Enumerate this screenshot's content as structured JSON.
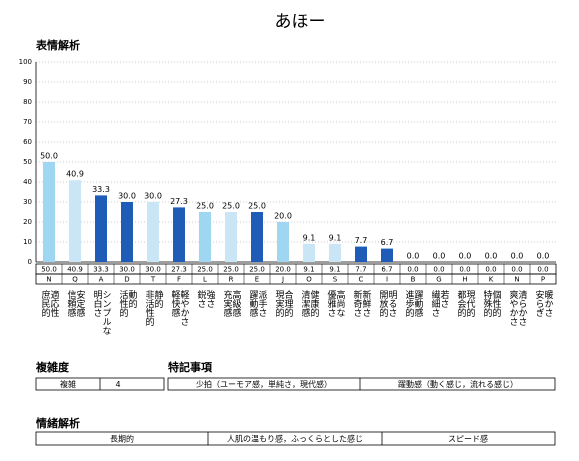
{
  "chart_data": {
    "type": "bar",
    "title": "あほー",
    "section": "表情解析",
    "categories": [
      "N",
      "Q",
      "A",
      "D",
      "T",
      "F",
      "L",
      "R",
      "E",
      "J",
      "O",
      "S",
      "C",
      "I",
      "B",
      "G",
      "H",
      "K",
      "N",
      "P"
    ],
    "descriptions": [
      [
        "庶民的",
        "適応性"
      ],
      [
        "信頼感",
        "安定感"
      ],
      [
        "明白さ",
        "シンプルな"
      ],
      [
        "活性的",
        "動的"
      ],
      [
        "非活性的",
        "静的"
      ],
      [
        "軽快感",
        "軽やかさ"
      ],
      [
        "鋭さ",
        "強さ"
      ],
      [
        "充実感",
        "高級感"
      ],
      [
        "躍動感",
        "派手さ"
      ],
      [
        "現実的",
        "合理的"
      ],
      [
        "清潔感",
        "健康的"
      ],
      [
        "優雅さ",
        "高尚な"
      ],
      [
        "新奇さ",
        "新鮮さ"
      ],
      [
        "開放的",
        "明るさ"
      ],
      [
        "進歩的",
        "躍動感"
      ],
      [
        "繊細さ",
        "若さ"
      ],
      [
        "都会的",
        "現代的"
      ],
      [
        "特殊的",
        "個性的"
      ],
      [
        "爽やかさ",
        "清らかさ"
      ],
      [
        "安らぎ",
        "暖かさ"
      ]
    ],
    "values": [
      50.0,
      40.9,
      33.3,
      30.0,
      30.0,
      27.3,
      25.0,
      25.0,
      25.0,
      20.0,
      9.1,
      9.1,
      7.7,
      6.7,
      0,
      0,
      0,
      0,
      0,
      0
    ],
    "value_labels": [
      "50.0",
      "40.9",
      "33.3",
      "30.0",
      "30.0",
      "27.3",
      "25.0",
      "25.0",
      "25.0",
      "20.0",
      "9.1",
      "9.1",
      "7.7",
      "6.7",
      "0.0",
      "0.0",
      "0.0",
      "0.0",
      "0.0",
      "0.0"
    ],
    "colors": [
      "#9fd6f2",
      "#c9e5f6",
      "#1f5cb8",
      "#1f5cb8",
      "#c9e5f6",
      "#1f5cb8",
      "#9fd6f2",
      "#c9e5f6",
      "#1f5cb8",
      "#9fd6f2",
      "#c9e5f6",
      "#c9e5f6",
      "#1f5cb8",
      "#1f5cb8",
      "#9fd6f2",
      "#9fd6f2",
      "#9fd6f2",
      "#9fd6f2",
      "#9fd6f2",
      "#9fd6f2"
    ],
    "ylim": [
      0,
      100
    ],
    "yticks": [
      0,
      10,
      20,
      30,
      40,
      50,
      60,
      70,
      80,
      90,
      100
    ],
    "grid": true
  },
  "complexity": {
    "heading": "複雑度",
    "label": "複雑",
    "value": 4
  },
  "notes": {
    "heading": "特記事項",
    "items": [
      "少拍（ユーモア感，単純さ，現代感）",
      "躍動感（動く感じ，流れる感じ）"
    ]
  },
  "emotion": {
    "heading": "情緒解析",
    "items": [
      "長期的",
      "人肌の温もり感，ふっくらとした感じ",
      "スピード感"
    ]
  }
}
